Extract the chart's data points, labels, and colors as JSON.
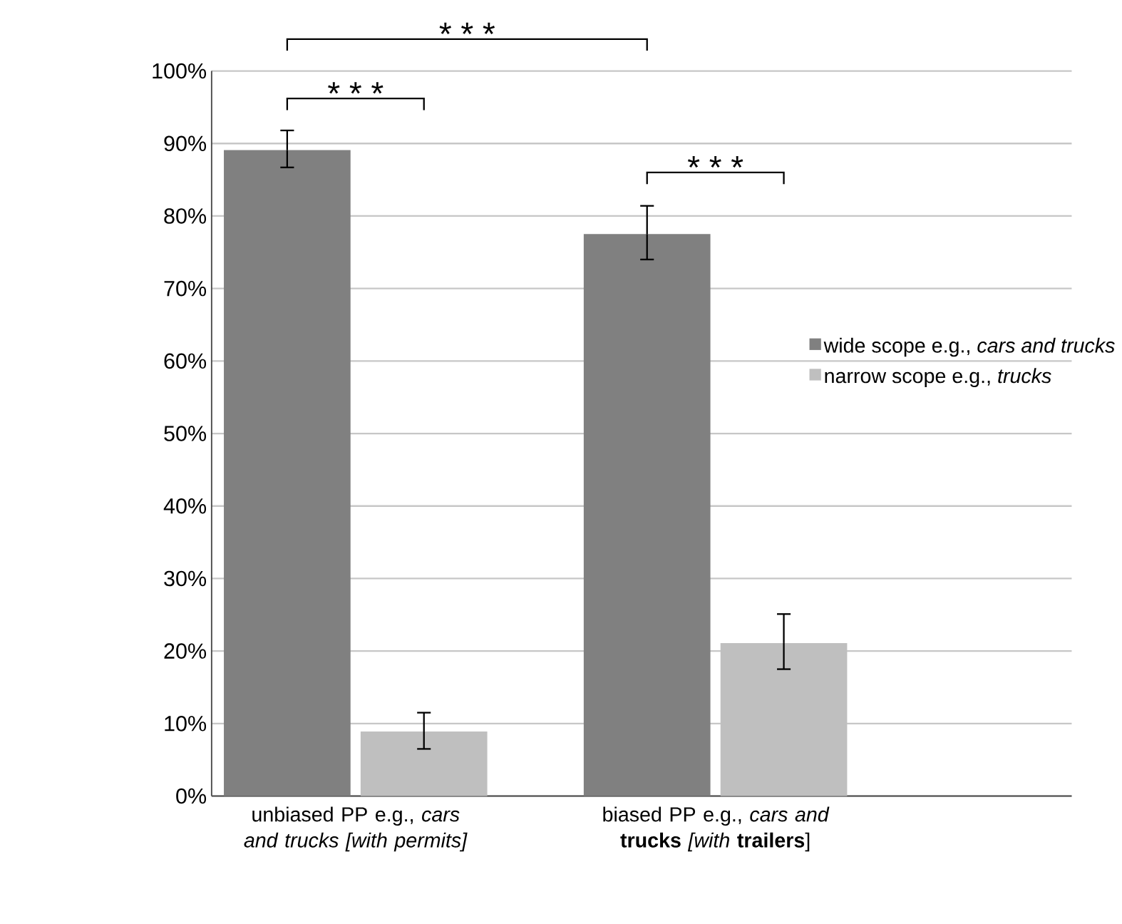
{
  "chart_data": {
    "type": "bar",
    "categories": [
      "unbiased PP e.g., *cars and trucks [with permits]*",
      "biased PP e.g., *cars and* **trucks** *[with* **trailers**]"
    ],
    "series": [
      {
        "name": "wide scope e.g., *cars and trucks*",
        "color": "#808080",
        "values": [
          89.1,
          77.5
        ],
        "errors": [
          [
            86.7,
            91.8
          ],
          [
            74.0,
            81.4
          ]
        ]
      },
      {
        "name": "narrow scope e.g., *trucks*",
        "color": "#bfbfbf",
        "values": [
          8.9,
          21.1
        ],
        "errors": [
          [
            6.5,
            11.5
          ],
          [
            17.5,
            25.1
          ]
        ]
      }
    ],
    "ylim": [
      0,
      100
    ],
    "yticks": [
      {
        "value": 0,
        "label": "0%"
      },
      {
        "value": 10,
        "label": "10%"
      },
      {
        "value": 20,
        "label": "20%"
      },
      {
        "value": 30,
        "label": "30%"
      },
      {
        "value": 40,
        "label": "40%"
      },
      {
        "value": 50,
        "label": "50%"
      },
      {
        "value": 60,
        "label": "60%"
      },
      {
        "value": 70,
        "label": "70%"
      },
      {
        "value": 80,
        "label": "80%"
      },
      {
        "value": 90,
        "label": "90%"
      },
      {
        "value": 100,
        "label": "100%"
      }
    ],
    "grid": "y",
    "legend": "right",
    "annotations": [
      "* * *",
      "* * *",
      "* * *"
    ]
  }
}
